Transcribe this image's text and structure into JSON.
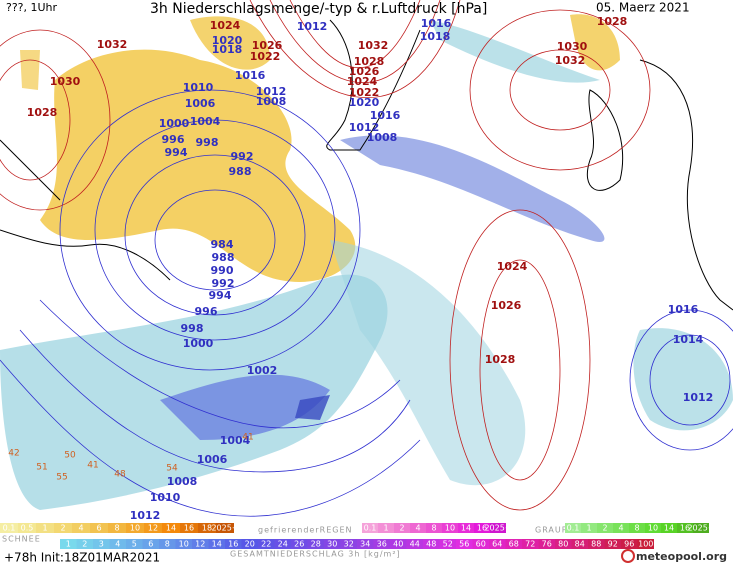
{
  "header": {
    "left": "???, 1Uhr",
    "title": "3h Niederschlagsmenge/-typ & r.Luftdruck [hPa]",
    "date": "05. Maerz 2021"
  },
  "isobar_labels": [
    1032,
    1030,
    1028,
    1024,
    1020,
    1018,
    1026,
    1022,
    1012,
    1032,
    1016,
    1018,
    1028,
    1026,
    1024,
    1022,
    1020,
    1016,
    1012,
    1008,
    1016,
    1012,
    1008,
    1010,
    1006,
    1000,
    1004,
    996,
    994,
    998,
    992,
    988,
    1030,
    1032,
    1028,
    1024,
    1026,
    1028,
    984,
    988,
    990,
    992,
    994,
    996,
    998,
    1000,
    1002,
    1004,
    1006,
    1008,
    1010,
    1012,
    1016,
    1014,
    1012
  ],
  "small_labels": [
    42,
    51,
    55,
    50,
    41,
    48,
    54,
    41
  ],
  "legend": {
    "snow": {
      "name": "SCHNEE",
      "steps": [
        0.1,
        0.5,
        1,
        2,
        4,
        6,
        8,
        10,
        12,
        14,
        16,
        18,
        "2025+"
      ]
    },
    "freezing_rain": {
      "name": "gefrierenderREGEN",
      "steps": [
        0.1,
        1,
        2,
        4,
        8,
        10,
        14,
        16,
        "2025+"
      ]
    },
    "graupel": {
      "name": "GRAUPEL",
      "steps": [
        0.1,
        1,
        2,
        4,
        8,
        10,
        14,
        16,
        "2025+"
      ]
    },
    "total": {
      "name": "GESAMTNIEDERSCHLAG 3h [kg/m²]",
      "steps": [
        1,
        2,
        3,
        4,
        5,
        6,
        8,
        10,
        12,
        14,
        16,
        20,
        22,
        24,
        26,
        28,
        30,
        32,
        34,
        36,
        40,
        44,
        48,
        52,
        56,
        60,
        64,
        68,
        72,
        76,
        80,
        84,
        88,
        92,
        96,
        100
      ]
    }
  },
  "footer": {
    "info": "+78h Init:18Z01MAR2021",
    "brand": "meteopool.org"
  }
}
